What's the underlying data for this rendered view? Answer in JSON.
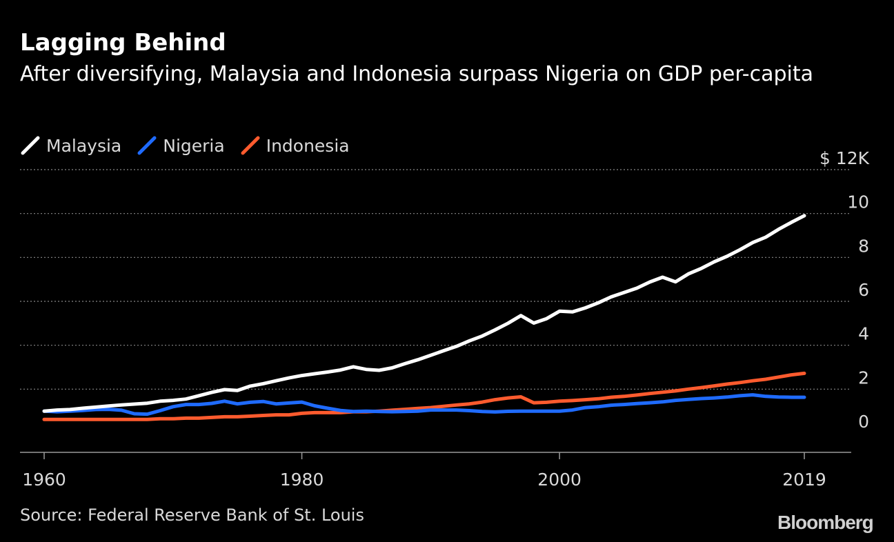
{
  "title": "Lagging Behind",
  "subtitle": "After diversifying, Malaysia and Indonesia surpass Nigeria on GDP per-capita",
  "source": "Source: Federal Reserve Bank of St. Louis",
  "brand": "Bloomberg",
  "chart_data": {
    "type": "line",
    "title": "Lagging Behind",
    "subtitle": "After diversifying, Malaysia and Indonesia surpass Nigeria on GDP per-capita",
    "xlabel": "",
    "ylabel": "",
    "xlim": [
      1960,
      2019
    ],
    "ylim": [
      0,
      12
    ],
    "x_ticks": [
      1960,
      1980,
      2000,
      2019
    ],
    "y_ticks": [
      0,
      2,
      4,
      6,
      8,
      10,
      12
    ],
    "y_tick_labels": [
      "0",
      "2",
      "4",
      "6",
      "8",
      "10",
      "$ 12K"
    ],
    "grid": "horizontal dotted",
    "legend": "top-left",
    "background": "#000000",
    "series": [
      {
        "name": "Malaysia",
        "color": "#ffffff",
        "points": [
          [
            1960,
            1.0
          ],
          [
            1961,
            1.05
          ],
          [
            1962,
            1.07
          ],
          [
            1963,
            1.13
          ],
          [
            1964,
            1.18
          ],
          [
            1965,
            1.23
          ],
          [
            1966,
            1.28
          ],
          [
            1967,
            1.32
          ],
          [
            1968,
            1.36
          ],
          [
            1969,
            1.45
          ],
          [
            1970,
            1.49
          ],
          [
            1971,
            1.55
          ],
          [
            1972,
            1.7
          ],
          [
            1973,
            1.85
          ],
          [
            1974,
            1.98
          ],
          [
            1975,
            1.94
          ],
          [
            1976,
            2.14
          ],
          [
            1977,
            2.25
          ],
          [
            1978,
            2.38
          ],
          [
            1979,
            2.51
          ],
          [
            1980,
            2.62
          ],
          [
            1981,
            2.7
          ],
          [
            1982,
            2.78
          ],
          [
            1983,
            2.87
          ],
          [
            1984,
            3.02
          ],
          [
            1985,
            2.9
          ],
          [
            1986,
            2.86
          ],
          [
            1987,
            2.97
          ],
          [
            1988,
            3.16
          ],
          [
            1989,
            3.34
          ],
          [
            1990,
            3.54
          ],
          [
            1991,
            3.75
          ],
          [
            1992,
            3.95
          ],
          [
            1993,
            4.2
          ],
          [
            1994,
            4.42
          ],
          [
            1995,
            4.7
          ],
          [
            1996,
            5.0
          ],
          [
            1997,
            5.35
          ],
          [
            1998,
            5.01
          ],
          [
            1999,
            5.21
          ],
          [
            2000,
            5.55
          ],
          [
            2001,
            5.52
          ],
          [
            2002,
            5.7
          ],
          [
            2003,
            5.93
          ],
          [
            2004,
            6.2
          ],
          [
            2005,
            6.4
          ],
          [
            2006,
            6.6
          ],
          [
            2007,
            6.88
          ],
          [
            2008,
            7.1
          ],
          [
            2009,
            6.89
          ],
          [
            2010,
            7.25
          ],
          [
            2011,
            7.5
          ],
          [
            2012,
            7.8
          ],
          [
            2013,
            8.05
          ],
          [
            2014,
            8.35
          ],
          [
            2015,
            8.68
          ],
          [
            2016,
            8.92
          ],
          [
            2017,
            9.28
          ],
          [
            2018,
            9.6
          ],
          [
            2019,
            9.9
          ]
        ]
      },
      {
        "name": "Nigeria",
        "color": "#1f6bff",
        "points": [
          [
            1960,
            1.0
          ],
          [
            1961,
            0.97
          ],
          [
            1962,
            1.0
          ],
          [
            1963,
            1.03
          ],
          [
            1964,
            1.07
          ],
          [
            1965,
            1.08
          ],
          [
            1966,
            1.04
          ],
          [
            1967,
            0.88
          ],
          [
            1968,
            0.86
          ],
          [
            1969,
            1.02
          ],
          [
            1970,
            1.2
          ],
          [
            1971,
            1.3
          ],
          [
            1972,
            1.3
          ],
          [
            1973,
            1.35
          ],
          [
            1974,
            1.45
          ],
          [
            1975,
            1.33
          ],
          [
            1976,
            1.4
          ],
          [
            1977,
            1.44
          ],
          [
            1978,
            1.33
          ],
          [
            1979,
            1.37
          ],
          [
            1980,
            1.41
          ],
          [
            1981,
            1.24
          ],
          [
            1982,
            1.13
          ],
          [
            1983,
            1.03
          ],
          [
            1984,
            0.98
          ],
          [
            1985,
            1.0
          ],
          [
            1986,
            0.98
          ],
          [
            1987,
            0.97
          ],
          [
            1988,
            0.98
          ],
          [
            1989,
            1.0
          ],
          [
            1990,
            1.05
          ],
          [
            1991,
            1.05
          ],
          [
            1992,
            1.05
          ],
          [
            1993,
            1.02
          ],
          [
            1994,
            0.98
          ],
          [
            1995,
            0.96
          ],
          [
            1996,
            0.99
          ],
          [
            1997,
            1.0
          ],
          [
            1998,
            1.0
          ],
          [
            1999,
            1.0
          ],
          [
            2000,
            1.0
          ],
          [
            2001,
            1.05
          ],
          [
            2002,
            1.16
          ],
          [
            2003,
            1.2
          ],
          [
            2004,
            1.27
          ],
          [
            2005,
            1.3
          ],
          [
            2006,
            1.34
          ],
          [
            2007,
            1.38
          ],
          [
            2008,
            1.42
          ],
          [
            2009,
            1.49
          ],
          [
            2010,
            1.53
          ],
          [
            2011,
            1.57
          ],
          [
            2012,
            1.6
          ],
          [
            2013,
            1.64
          ],
          [
            2014,
            1.7
          ],
          [
            2015,
            1.74
          ],
          [
            2016,
            1.67
          ],
          [
            2017,
            1.64
          ],
          [
            2018,
            1.63
          ],
          [
            2019,
            1.63
          ]
        ]
      },
      {
        "name": "Indonesia",
        "color": "#ff5b2e",
        "points": [
          [
            1960,
            0.62
          ],
          [
            1961,
            0.62
          ],
          [
            1962,
            0.62
          ],
          [
            1963,
            0.62
          ],
          [
            1964,
            0.62
          ],
          [
            1965,
            0.62
          ],
          [
            1966,
            0.62
          ],
          [
            1967,
            0.62
          ],
          [
            1968,
            0.62
          ],
          [
            1969,
            0.65
          ],
          [
            1970,
            0.65
          ],
          [
            1971,
            0.68
          ],
          [
            1972,
            0.68
          ],
          [
            1973,
            0.71
          ],
          [
            1974,
            0.74
          ],
          [
            1975,
            0.74
          ],
          [
            1976,
            0.77
          ],
          [
            1977,
            0.8
          ],
          [
            1978,
            0.83
          ],
          [
            1979,
            0.83
          ],
          [
            1980,
            0.9
          ],
          [
            1981,
            0.93
          ],
          [
            1982,
            0.93
          ],
          [
            1983,
            0.93
          ],
          [
            1984,
            0.97
          ],
          [
            1985,
            0.97
          ],
          [
            1986,
            1.0
          ],
          [
            1987,
            1.04
          ],
          [
            1988,
            1.08
          ],
          [
            1989,
            1.12
          ],
          [
            1990,
            1.16
          ],
          [
            1991,
            1.22
          ],
          [
            1992,
            1.28
          ],
          [
            1993,
            1.33
          ],
          [
            1994,
            1.41
          ],
          [
            1995,
            1.52
          ],
          [
            1996,
            1.6
          ],
          [
            1997,
            1.65
          ],
          [
            1998,
            1.38
          ],
          [
            1999,
            1.4
          ],
          [
            2000,
            1.45
          ],
          [
            2001,
            1.48
          ],
          [
            2002,
            1.52
          ],
          [
            2003,
            1.56
          ],
          [
            2004,
            1.63
          ],
          [
            2005,
            1.67
          ],
          [
            2006,
            1.73
          ],
          [
            2007,
            1.8
          ],
          [
            2008,
            1.86
          ],
          [
            2009,
            1.92
          ],
          [
            2010,
            2.0
          ],
          [
            2011,
            2.07
          ],
          [
            2012,
            2.15
          ],
          [
            2013,
            2.23
          ],
          [
            2014,
            2.3
          ],
          [
            2015,
            2.38
          ],
          [
            2016,
            2.45
          ],
          [
            2017,
            2.55
          ],
          [
            2018,
            2.65
          ],
          [
            2019,
            2.72
          ]
        ]
      }
    ]
  }
}
